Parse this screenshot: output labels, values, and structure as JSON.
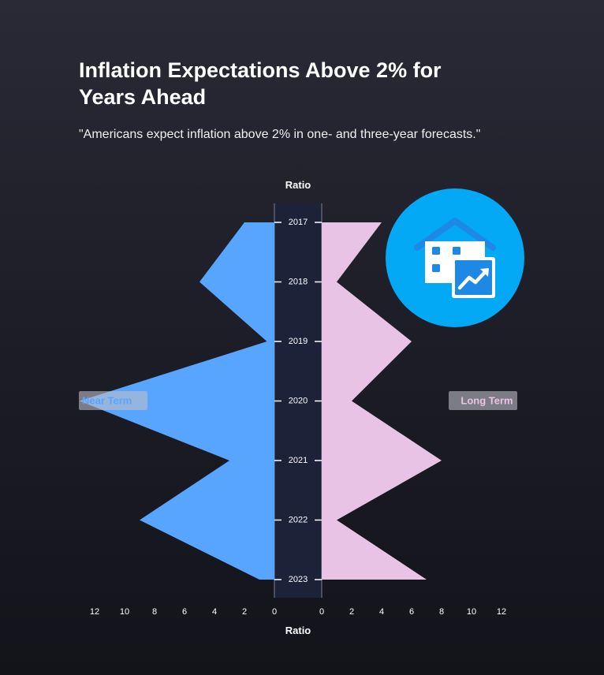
{
  "title": "Inflation Expectations Above 2% for Years Ahead",
  "subtitle": "\"Americans expect inflation above 2% in one- and three-year forecasts.\"",
  "colors": {
    "near_term": "#58a5ff",
    "long_term": "#e8c3e6",
    "center_band": "#1c2238",
    "icon_circle": "#03a9f4",
    "icon_house": "#ffffff",
    "icon_accent": "#1e88e5"
  },
  "icon": "house-chart-icon",
  "chart_data": {
    "type": "area",
    "layout": "butterfly",
    "categories": [
      "2017",
      "2018",
      "2019",
      "2020",
      "2021",
      "2022",
      "2023"
    ],
    "series": [
      {
        "name": "Near Term",
        "side": "left",
        "values": [
          2,
          5,
          0.5,
          13,
          3,
          9,
          1
        ]
      },
      {
        "name": "Long Term",
        "side": "right",
        "values": [
          4,
          1,
          6,
          2,
          8,
          1,
          7
        ]
      }
    ],
    "xlabel_top": "Ratio",
    "xlabel_bottom": "Ratio",
    "x_ticks": [
      "12",
      "10",
      "8",
      "6",
      "4",
      "2",
      "0",
      "0",
      "2",
      "4",
      "6",
      "8",
      "10",
      "12"
    ],
    "xlim": [
      0,
      12
    ]
  }
}
